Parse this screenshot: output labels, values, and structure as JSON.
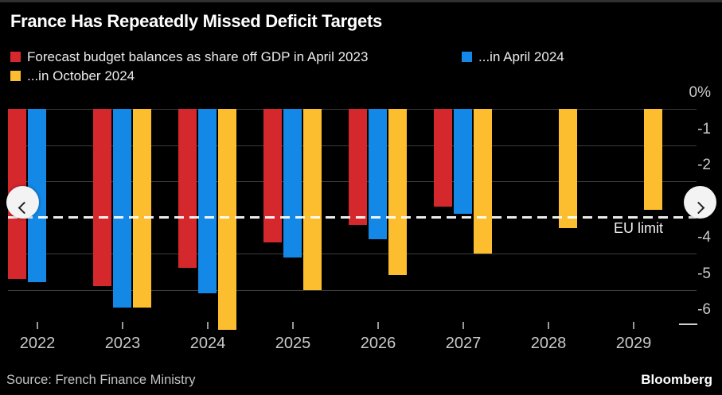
{
  "header": {
    "title": "France Has Repeatedly Missed Deficit Targets"
  },
  "legend": [
    {
      "label": "Forecast budget balances as share off GDP in April 2023",
      "color": "#d5282d"
    },
    {
      "label": "...in April 2024",
      "color": "#1488e6"
    },
    {
      "label": "...in October 2024",
      "color": "#fcbe2e"
    }
  ],
  "chart_data": {
    "type": "bar",
    "title": "France Has Repeatedly Missed Deficit Targets",
    "categories": [
      "2022",
      "2023",
      "2024",
      "2025",
      "2026",
      "2027",
      "2028",
      "2029"
    ],
    "series": [
      {
        "name": "Forecast budget balances as share off GDP in April 2023",
        "color": "#d5282d",
        "values": [
          -4.7,
          -4.9,
          -4.4,
          -3.7,
          -3.2,
          -2.7,
          null,
          null
        ]
      },
      {
        "name": "...in April 2024",
        "color": "#1488e6",
        "values": [
          -4.8,
          -5.5,
          -5.1,
          -4.1,
          -3.6,
          -2.9,
          null,
          null
        ]
      },
      {
        "name": "...in October 2024",
        "color": "#fcbe2e",
        "values": [
          null,
          -5.5,
          -6.1,
          -5.0,
          -4.6,
          -4.0,
          -3.3,
          -2.8
        ]
      }
    ],
    "ylabel": "",
    "xlabel": "",
    "ylim": [
      -6.5,
      0
    ],
    "grid": true,
    "legend_position": "top",
    "gridline_values": [
      0,
      -1,
      -2,
      -4,
      -5
    ],
    "yticks": [
      {
        "label": "0%",
        "value": 0
      },
      {
        "label": "-1",
        "value": -1
      },
      {
        "label": "-2",
        "value": -2
      },
      {
        "label": "-4",
        "value": -4
      },
      {
        "label": "-5",
        "value": -5
      },
      {
        "label": "-6",
        "value": -6
      }
    ],
    "reference_line": {
      "value": -3,
      "label": "EU limit",
      "style": "dashed-white"
    }
  },
  "footer": {
    "source": "Source: French Finance Ministry",
    "brand": "Bloomberg"
  }
}
